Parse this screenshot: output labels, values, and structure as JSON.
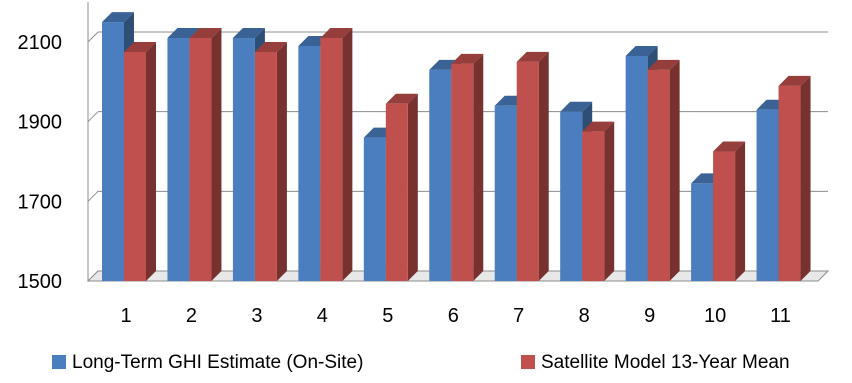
{
  "chart_data": {
    "type": "bar",
    "categories": [
      "1",
      "2",
      "3",
      "4",
      "5",
      "6",
      "7",
      "8",
      "9",
      "10",
      "11"
    ],
    "series": [
      {
        "name": "Long-Term GHI Estimate (On-Site)",
        "color": "#4a7ebf",
        "values": [
          2150,
          2110,
          2110,
          2090,
          1860,
          2030,
          1940,
          1925,
          2065,
          1745,
          1930
        ]
      },
      {
        "name": "Satellite Model 13-Year Mean",
        "color": "#c0504d",
        "values": [
          2075,
          2110,
          2075,
          2110,
          1945,
          2045,
          2050,
          1875,
          2030,
          1825,
          1990
        ]
      }
    ],
    "yticks": [
      "1500",
      "1700",
      "1900",
      "2100"
    ],
    "ylim": [
      1500,
      2200
    ],
    "grid": true,
    "legend_position": "bottom"
  }
}
